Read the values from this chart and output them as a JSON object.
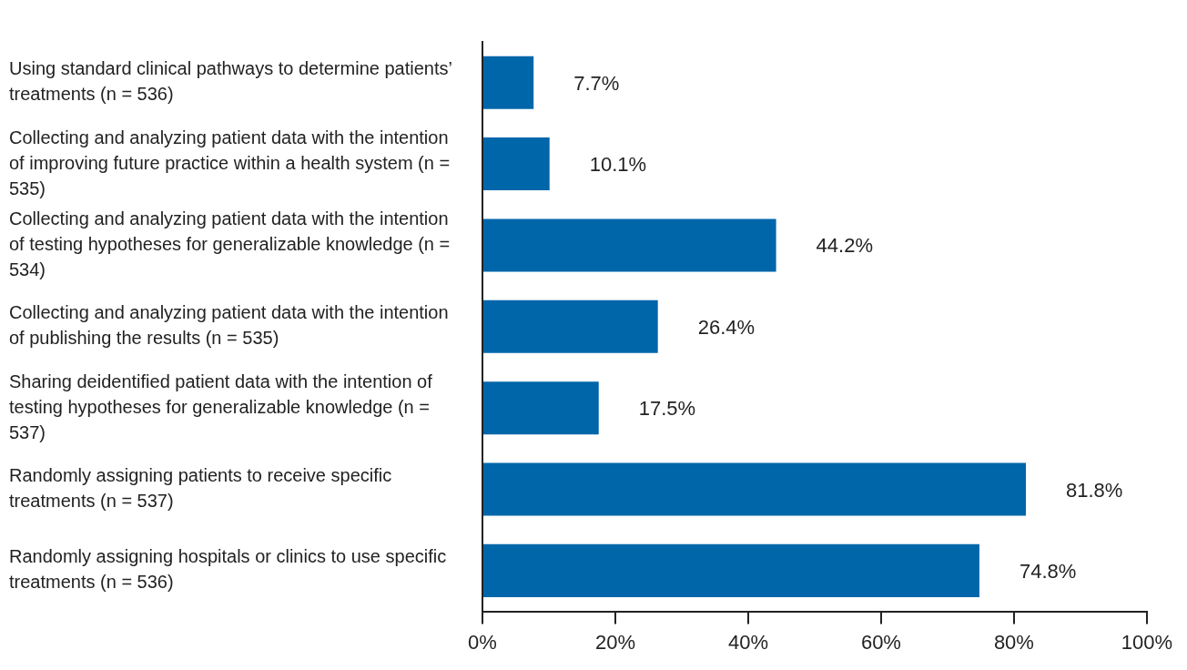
{
  "chart_data": {
    "type": "bar",
    "orientation": "horizontal",
    "categories": [
      "Using standard clinical pathways to determine patients’ treatments (n = 536)",
      "Collecting and analyzing patient data with the intention of improving future practice within a health system (n = 535)",
      "Collecting and analyzing patient data with the intention of testing hypotheses for generalizable knowledge (n = 534)",
      "Collecting and analyzing patient data with the intention of publishing the results (n = 535)",
      "Sharing deidentified patient data with the intention of testing hypotheses for generalizable knowledge (n = 537)",
      "Randomly assigning patients to receive specific treatments (n = 537)",
      "Randomly assigning hospitals or clinics to use specific treatments (n = 536)"
    ],
    "values": [
      7.7,
      10.1,
      44.2,
      26.4,
      17.5,
      81.8,
      74.8
    ],
    "value_labels": [
      "7.7%",
      "10.1%",
      "44.2%",
      "26.4%",
      "17.5%",
      "81.8%",
      "74.8%"
    ],
    "color": "#0066aa",
    "xlim": [
      0,
      100
    ],
    "xticks": [
      {
        "value": 0,
        "label": "0%"
      },
      {
        "value": 20,
        "label": "20%"
      },
      {
        "value": 40,
        "label": "40%"
      },
      {
        "value": 60,
        "label": "60%"
      },
      {
        "value": 80,
        "label": "80%"
      },
      {
        "value": 100,
        "label": "100%"
      }
    ],
    "grid": false,
    "legend": false
  }
}
